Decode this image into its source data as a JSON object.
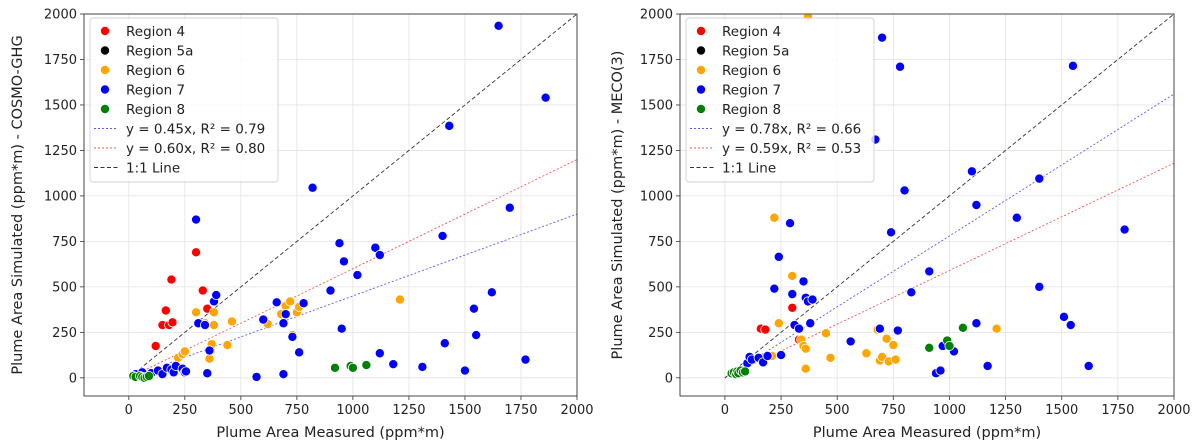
{
  "chart_data": [
    {
      "type": "scatter",
      "xlabel": "Plume Area Measured (ppm*m)",
      "ylabel": "Plume Area Simulated (ppm*m) - COSMO-GHG",
      "xlim": [
        -200,
        2000
      ],
      "ylim": [
        -100,
        2000
      ],
      "xticks": [
        0,
        250,
        500,
        750,
        1000,
        1250,
        1500,
        1750,
        2000
      ],
      "yticks": [
        0,
        250,
        500,
        750,
        1000,
        1250,
        1500,
        1750,
        2000
      ],
      "grid": true,
      "legend_position": "top-left",
      "series": [
        {
          "name": "Region 4",
          "color": "#ff0000",
          "points": [
            [
              120,
              175
            ],
            [
              150,
              290
            ],
            [
              165,
              370
            ],
            [
              180,
              290
            ],
            [
              190,
              540
            ],
            [
              195,
              305
            ],
            [
              300,
              690
            ],
            [
              330,
              480
            ],
            [
              350,
              380
            ]
          ]
        },
        {
          "name": "Region 5a",
          "color": "#000000",
          "points": []
        },
        {
          "name": "Region 6",
          "color": "#ffa500",
          "points": [
            [
              220,
              110
            ],
            [
              240,
              130
            ],
            [
              250,
              145
            ],
            [
              300,
              360
            ],
            [
              340,
              300
            ],
            [
              360,
              105
            ],
            [
              365,
              150
            ],
            [
              370,
              185
            ],
            [
              380,
              290
            ],
            [
              380,
              360
            ],
            [
              440,
              180
            ],
            [
              460,
              310
            ],
            [
              620,
              295
            ],
            [
              680,
              350
            ],
            [
              700,
              395
            ],
            [
              720,
              420
            ],
            [
              730,
              235
            ],
            [
              750,
              360
            ],
            [
              760,
              390
            ],
            [
              1210,
              430
            ]
          ]
        },
        {
          "name": "Region 7",
          "color": "#0000ff",
          "points": [
            [
              30,
              20
            ],
            [
              60,
              30
            ],
            [
              100,
              25
            ],
            [
              130,
              40
            ],
            [
              150,
              20
            ],
            [
              170,
              55
            ],
            [
              190,
              45
            ],
            [
              200,
              30
            ],
            [
              210,
              65
            ],
            [
              240,
              50
            ],
            [
              250,
              30
            ],
            [
              255,
              35
            ],
            [
              300,
              870
            ],
            [
              310,
              300
            ],
            [
              340,
              290
            ],
            [
              350,
              25
            ],
            [
              360,
              150
            ],
            [
              380,
              420
            ],
            [
              390,
              455
            ],
            [
              570,
              5
            ],
            [
              600,
              320
            ],
            [
              660,
              415
            ],
            [
              690,
              300
            ],
            [
              690,
              20
            ],
            [
              700,
              350
            ],
            [
              730,
              225
            ],
            [
              760,
              140
            ],
            [
              780,
              410
            ],
            [
              820,
              1045
            ],
            [
              900,
              480
            ],
            [
              940,
              740
            ],
            [
              950,
              270
            ],
            [
              960,
              640
            ],
            [
              1020,
              565
            ],
            [
              1100,
              715
            ],
            [
              1120,
              675
            ],
            [
              1120,
              135
            ],
            [
              1180,
              75
            ],
            [
              1310,
              60
            ],
            [
              1400,
              780
            ],
            [
              1410,
              190
            ],
            [
              1430,
              1385
            ],
            [
              1500,
              40
            ],
            [
              1540,
              380
            ],
            [
              1550,
              235
            ],
            [
              1620,
              470
            ],
            [
              1650,
              1935
            ],
            [
              1700,
              935
            ],
            [
              1770,
              100
            ],
            [
              1860,
              1540
            ]
          ]
        },
        {
          "name": "Region 8",
          "color": "#008000",
          "points": [
            [
              20,
              10
            ],
            [
              30,
              5
            ],
            [
              50,
              10
            ],
            [
              60,
              5
            ],
            [
              70,
              0
            ],
            [
              80,
              5
            ],
            [
              90,
              10
            ],
            [
              920,
              55
            ],
            [
              990,
              65
            ],
            [
              1000,
              55
            ],
            [
              1060,
              70
            ]
          ]
        }
      ],
      "fits": [
        {
          "label": "y = 0.45x, R² = 0.79",
          "slope": 0.45,
          "color": "#5a5aff"
        },
        {
          "label": "y = 0.60x, R² = 0.80",
          "slope": 0.6,
          "color": "#ff5050"
        },
        {
          "label": "1:1 Line",
          "slope": 1.0,
          "color": "#333333"
        }
      ]
    },
    {
      "type": "scatter",
      "xlabel": "Plume Area Measured (ppm*m)",
      "ylabel": "Plume Area Simulated (ppm*m) - MECO(3)",
      "xlim": [
        -200,
        2000
      ],
      "ylim": [
        -100,
        2000
      ],
      "xticks": [
        0,
        250,
        500,
        750,
        1000,
        1250,
        1500,
        1750,
        2000
      ],
      "yticks": [
        0,
        250,
        500,
        750,
        1000,
        1250,
        1500,
        1750,
        2000
      ],
      "grid": true,
      "legend_position": "top-left",
      "series": [
        {
          "name": "Region 4",
          "color": "#ff0000",
          "points": [
            [
              150,
              105
            ],
            [
              160,
              270
            ],
            [
              180,
              265
            ],
            [
              300,
              385
            ],
            [
              330,
              210
            ]
          ]
        },
        {
          "name": "Region 5a",
          "color": "#000000",
          "points": []
        },
        {
          "name": "Region 6",
          "color": "#ffa500",
          "points": [
            [
              210,
              120
            ],
            [
              220,
              880
            ],
            [
              240,
              300
            ],
            [
              300,
              560
            ],
            [
              340,
              210
            ],
            [
              350,
              175
            ],
            [
              360,
              160
            ],
            [
              360,
              50
            ],
            [
              370,
              1985
            ],
            [
              450,
              245
            ],
            [
              470,
              110
            ],
            [
              630,
              135
            ],
            [
              680,
              265
            ],
            [
              690,
              95
            ],
            [
              700,
              115
            ],
            [
              720,
              215
            ],
            [
              730,
              90
            ],
            [
              750,
              180
            ],
            [
              760,
              100
            ],
            [
              1210,
              270
            ]
          ]
        },
        {
          "name": "Region 7",
          "color": "#0000ff",
          "points": [
            [
              100,
              80
            ],
            [
              110,
              115
            ],
            [
              120,
              100
            ],
            [
              150,
              110
            ],
            [
              170,
              85
            ],
            [
              190,
              120
            ],
            [
              220,
              490
            ],
            [
              240,
              665
            ],
            [
              250,
              125
            ],
            [
              290,
              850
            ],
            [
              300,
              460
            ],
            [
              310,
              290
            ],
            [
              330,
              270
            ],
            [
              350,
              530
            ],
            [
              360,
              440
            ],
            [
              370,
              420
            ],
            [
              380,
              300
            ],
            [
              390,
              430
            ],
            [
              560,
              200
            ],
            [
              670,
              1310
            ],
            [
              690,
              270
            ],
            [
              700,
              1870
            ],
            [
              740,
              800
            ],
            [
              770,
              260
            ],
            [
              780,
              1710
            ],
            [
              800,
              1030
            ],
            [
              830,
              470
            ],
            [
              910,
              585
            ],
            [
              940,
              25
            ],
            [
              960,
              40
            ],
            [
              970,
              175
            ],
            [
              1020,
              145
            ],
            [
              1100,
              1135
            ],
            [
              1120,
              950
            ],
            [
              1120,
              300
            ],
            [
              1170,
              65
            ],
            [
              1300,
              880
            ],
            [
              1400,
              1095
            ],
            [
              1400,
              500
            ],
            [
              1510,
              335
            ],
            [
              1540,
              290
            ],
            [
              1550,
              1715
            ],
            [
              1620,
              65
            ],
            [
              1780,
              815
            ]
          ]
        },
        {
          "name": "Region 8",
          "color": "#008000",
          "points": [
            [
              30,
              25
            ],
            [
              40,
              30
            ],
            [
              50,
              20
            ],
            [
              55,
              35
            ],
            [
              60,
              25
            ],
            [
              70,
              40
            ],
            [
              80,
              30
            ],
            [
              90,
              35
            ],
            [
              910,
              165
            ],
            [
              990,
              205
            ],
            [
              1000,
              175
            ],
            [
              1060,
              275
            ]
          ]
        }
      ],
      "fits": [
        {
          "label": "y = 0.78x, R² = 0.66",
          "slope": 0.78,
          "color": "#5a5aff"
        },
        {
          "label": "y = 0.59x, R² = 0.53",
          "slope": 0.59,
          "color": "#ff5050"
        },
        {
          "label": "1:1 Line",
          "slope": 1.0,
          "color": "#333333"
        }
      ]
    }
  ]
}
